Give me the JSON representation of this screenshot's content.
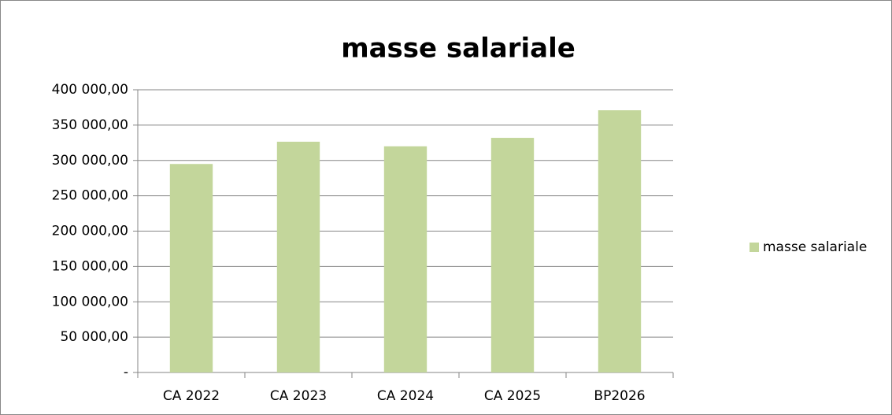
{
  "chart_data": {
    "type": "bar",
    "title": "masse salariale",
    "categories": [
      "CA 2022",
      "CA 2023",
      "CA 2024",
      "CA 2025",
      "BP2026"
    ],
    "series": [
      {
        "name": "masse salariale",
        "color": "#c3d69b",
        "values": [
          295000,
          326500,
          320000,
          332000,
          371000
        ]
      }
    ],
    "ylim": [
      0,
      400000
    ],
    "yticks": [
      {
        "value": 0,
        "label": "-"
      },
      {
        "value": 50000,
        "label": "50 000,00"
      },
      {
        "value": 100000,
        "label": "100 000,00"
      },
      {
        "value": 150000,
        "label": "150 000,00"
      },
      {
        "value": 200000,
        "label": "200 000,00"
      },
      {
        "value": 250000,
        "label": "250 000,00"
      },
      {
        "value": 300000,
        "label": "300 000,00"
      },
      {
        "value": 350000,
        "label": "350 000,00"
      },
      {
        "value": 400000,
        "label": "400 000,00"
      }
    ],
    "grid": true,
    "legend": "right"
  }
}
